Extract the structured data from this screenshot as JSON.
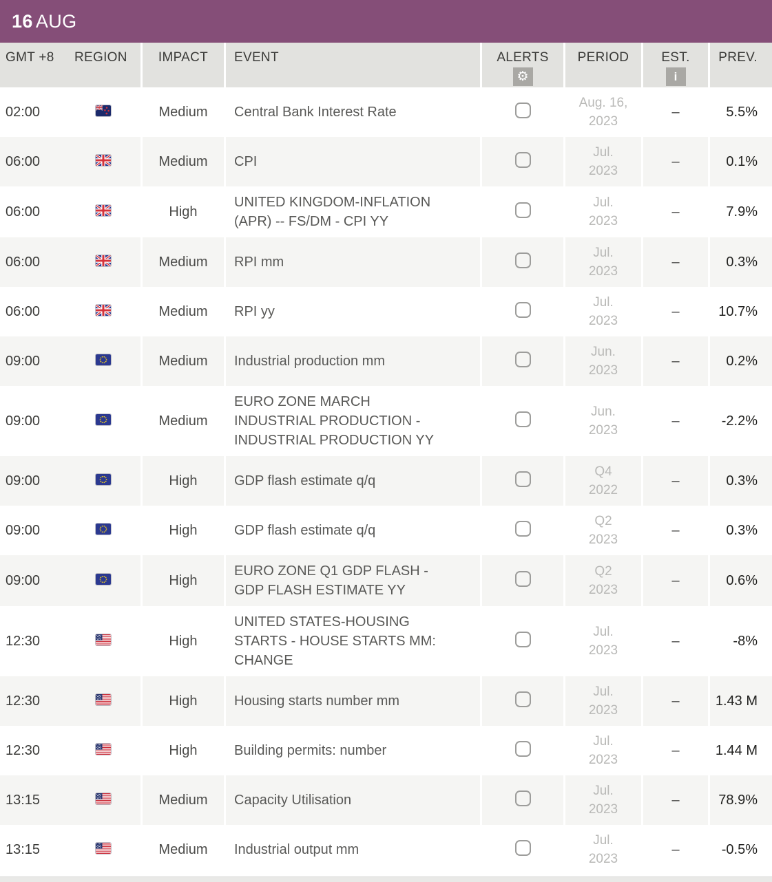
{
  "banner": {
    "day": "16",
    "month": "AUG"
  },
  "columns": {
    "time": "GMT +8",
    "region": "REGION",
    "impact": "IMPACT",
    "event": "EVENT",
    "alerts": "ALERTS",
    "period": "PERIOD",
    "est": "EST.",
    "prev": "PREV."
  },
  "icons": {
    "gear_glyph": "⚙",
    "info_glyph": "i"
  },
  "colors": {
    "accent_purple": "#854e78",
    "header_bg": "#e2e2df",
    "row_stripe": "#f5f5f3",
    "period_text": "#b9b9b7"
  },
  "rows": [
    {
      "time": "02:00",
      "region": "new-zealand",
      "impact": "Medium",
      "event": "Central Bank Interest Rate",
      "period": "Aug. 16,\n2023",
      "est": "–",
      "prev": "5.5%"
    },
    {
      "time": "06:00",
      "region": "united-kingdom",
      "impact": "Medium",
      "event": "CPI",
      "period": "Jul.\n2023",
      "est": "–",
      "prev": "0.1%"
    },
    {
      "time": "06:00",
      "region": "united-kingdom",
      "impact": "High",
      "event": "UNITED KINGDOM-INFLATION (APR) -- FS/DM - CPI YY",
      "period": "Jul.\n2023",
      "est": "–",
      "prev": "7.9%"
    },
    {
      "time": "06:00",
      "region": "united-kingdom",
      "impact": "Medium",
      "event": "RPI mm",
      "period": "Jul.\n2023",
      "est": "–",
      "prev": "0.3%"
    },
    {
      "time": "06:00",
      "region": "united-kingdom",
      "impact": "Medium",
      "event": "RPI yy",
      "period": "Jul.\n2023",
      "est": "–",
      "prev": "10.7%"
    },
    {
      "time": "09:00",
      "region": "european-union",
      "impact": "Medium",
      "event": "Industrial production mm",
      "period": "Jun.\n2023",
      "est": "–",
      "prev": "0.2%"
    },
    {
      "time": "09:00",
      "region": "european-union",
      "impact": "Medium",
      "event": "EURO ZONE MARCH INDUSTRIAL PRODUCTION - INDUSTRIAL PRODUCTION YY",
      "period": "Jun.\n2023",
      "est": "–",
      "prev": "-2.2%"
    },
    {
      "time": "09:00",
      "region": "european-union",
      "impact": "High",
      "event": "GDP flash estimate q/q",
      "period": "Q4\n2022",
      "est": "–",
      "prev": "0.3%"
    },
    {
      "time": "09:00",
      "region": "european-union",
      "impact": "High",
      "event": "GDP flash estimate q/q",
      "period": "Q2\n2023",
      "est": "–",
      "prev": "0.3%"
    },
    {
      "time": "09:00",
      "region": "european-union",
      "impact": "High",
      "event": "EURO ZONE Q1 GDP FLASH - GDP FLASH ESTIMATE YY",
      "period": "Q2\n2023",
      "est": "–",
      "prev": "0.6%"
    },
    {
      "time": "12:30",
      "region": "united-states",
      "impact": "High",
      "event": "UNITED STATES-HOUSING STARTS - HOUSE STARTS MM: CHANGE",
      "period": "Jul.\n2023",
      "est": "–",
      "prev": "-8%"
    },
    {
      "time": "12:30",
      "region": "united-states",
      "impact": "High",
      "event": "Housing starts number mm",
      "period": "Jul.\n2023",
      "est": "–",
      "prev": "1.43 M"
    },
    {
      "time": "12:30",
      "region": "united-states",
      "impact": "High",
      "event": "Building permits: number",
      "period": "Jul.\n2023",
      "est": "–",
      "prev": "1.44 M"
    },
    {
      "time": "13:15",
      "region": "united-states",
      "impact": "Medium",
      "event": "Capacity Utilisation",
      "period": "Jul.\n2023",
      "est": "–",
      "prev": "78.9%"
    },
    {
      "time": "13:15",
      "region": "united-states",
      "impact": "Medium",
      "event": "Industrial output mm",
      "period": "Jul.\n2023",
      "est": "–",
      "prev": "-0.5%"
    }
  ]
}
